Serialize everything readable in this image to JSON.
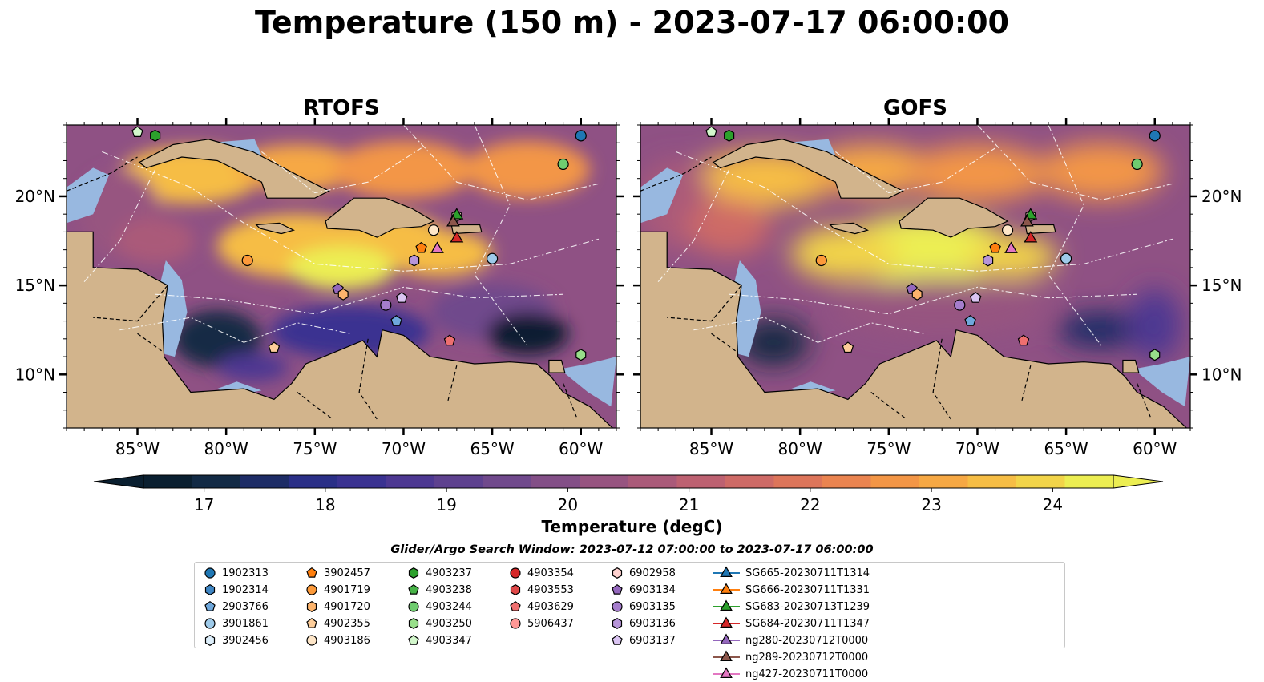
{
  "title": "Temperature (150 m) - 2023-07-17 06:00:00",
  "panels": [
    {
      "title": "RTOFS"
    },
    {
      "title": "GOFS"
    }
  ],
  "colorbar": {
    "label": "Temperature (degC)",
    "ticks": [
      "17",
      "18",
      "19",
      "20",
      "21",
      "22",
      "23",
      "24"
    ],
    "range": [
      16.5,
      24.5
    ],
    "colors": [
      "#0a1f30",
      "#122a45",
      "#1d2c66",
      "#2a2f87",
      "#3a3291",
      "#4d3892",
      "#5e418f",
      "#70498c",
      "#834f87",
      "#975480",
      "#aa5a79",
      "#bd6171",
      "#ce6a66",
      "#dd755a",
      "#ea8450",
      "#f39646",
      "#f6a844",
      "#f6bd45",
      "#f2d449",
      "#ecee52"
    ],
    "extend": "both"
  },
  "search_window": "Glider/Argo Search Window: 2023-07-12 07:00:00 to 2023-07-17 06:00:00",
  "map": {
    "lon_range": [
      -89,
      -58
    ],
    "lat_range": [
      7,
      24
    ],
    "lon_ticks": [
      "85°W",
      "80°W",
      "75°W",
      "70°W",
      "65°W",
      "60°W"
    ],
    "lat_ticks": [
      "10°N",
      "15°N",
      "20°N"
    ],
    "land_color": "#d2b48c",
    "shelf_color": "#98b8e0"
  },
  "legend": [
    {
      "label": "1902313",
      "marker": "circle",
      "color": "#1f77b4"
    },
    {
      "label": "1902314",
      "marker": "hexagon",
      "color": "#3f86c4"
    },
    {
      "label": "2903766",
      "marker": "pentagon",
      "color": "#6fa8dc"
    },
    {
      "label": "3901861",
      "marker": "circle",
      "color": "#9ecae9"
    },
    {
      "label": "3902456",
      "marker": "hexagon",
      "color": "#ddeefa"
    },
    {
      "label": "3902457",
      "marker": "pentagon",
      "color": "#ff7f0e"
    },
    {
      "label": "4901719",
      "marker": "circle",
      "color": "#fd9a3a"
    },
    {
      "label": "4901720",
      "marker": "hexagon",
      "color": "#fdb46c"
    },
    {
      "label": "4902355",
      "marker": "pentagon",
      "color": "#fdcd9a"
    },
    {
      "label": "4903186",
      "marker": "circle",
      "color": "#fee6c8"
    },
    {
      "label": "4903237",
      "marker": "hexagon",
      "color": "#2ca02c"
    },
    {
      "label": "4903238",
      "marker": "pentagon",
      "color": "#47b347"
    },
    {
      "label": "4903244",
      "marker": "circle",
      "color": "#6fcc6f"
    },
    {
      "label": "4903250",
      "marker": "hexagon",
      "color": "#98df8a"
    },
    {
      "label": "4903347",
      "marker": "pentagon",
      "color": "#d3f7cc"
    },
    {
      "label": "4903354",
      "marker": "circle",
      "color": "#d62728"
    },
    {
      "label": "4903553",
      "marker": "hexagon",
      "color": "#e04848"
    },
    {
      "label": "4903629",
      "marker": "pentagon",
      "color": "#ee6f6f"
    },
    {
      "label": "5906437",
      "marker": "circle",
      "color": "#ff9896"
    },
    {
      "label": "6902958",
      "marker": "hexagon",
      "color": "#ffd2d0"
    },
    {
      "label": "6903134",
      "marker": "pentagon",
      "color": "#9467bd"
    },
    {
      "label": "6903135",
      "marker": "circle",
      "color": "#a57dcc"
    },
    {
      "label": "6903136",
      "marker": "hexagon",
      "color": "#b795d9"
    },
    {
      "label": "6903137",
      "marker": "pentagon",
      "color": "#dac4f2"
    },
    {
      "label": "SG665-20230711T1314",
      "marker": "triangle",
      "color": "#1f77b4"
    },
    {
      "label": "SG666-20230711T1331",
      "marker": "triangle",
      "color": "#ff7f0e"
    },
    {
      "label": "SG683-20230713T1239",
      "marker": "triangle",
      "color": "#2ca02c"
    },
    {
      "label": "SG684-20230711T1347",
      "marker": "triangle",
      "color": "#d62728"
    },
    {
      "label": "ng280-20230712T0000",
      "marker": "triangle",
      "color": "#9467bd"
    },
    {
      "label": "ng289-20230712T0000",
      "marker": "triangle",
      "color": "#8c564b"
    },
    {
      "label": "ng427-20230711T0000",
      "marker": "triangle",
      "color": "#e377c2"
    }
  ],
  "chart_data": {
    "type": "heatmap",
    "title": "Temperature (150 m) - 2023-07-17 06:00:00",
    "variable": "Temperature (degC)",
    "depth": "150 m",
    "panels": [
      "RTOFS",
      "GOFS"
    ],
    "x_range": [
      -89,
      -58
    ],
    "y_range": [
      7,
      24
    ],
    "color_range": [
      16.5,
      24.5
    ],
    "observations": [
      {
        "id": "1902313",
        "lon": -60.0,
        "lat": 23.4
      },
      {
        "id": "4903244",
        "lon": -61.0,
        "lat": 21.8
      },
      {
        "id": "4903237",
        "lon": -84.0,
        "lat": 23.4
      },
      {
        "id": "4903347",
        "lon": -85.0,
        "lat": 23.6
      },
      {
        "id": "4903186",
        "lon": -68.3,
        "lat": 18.1
      },
      {
        "id": "6902958",
        "lon": -67.0,
        "lat": 18.9
      },
      {
        "id": "3902457",
        "lon": -69.0,
        "lat": 17.1
      },
      {
        "id": "6903136",
        "lon": -69.4,
        "lat": 16.4
      },
      {
        "id": "3901861",
        "lon": -65.0,
        "lat": 16.5
      },
      {
        "id": "4901719",
        "lon": -78.8,
        "lat": 16.4
      },
      {
        "id": "6903134",
        "lon": -73.7,
        "lat": 14.8
      },
      {
        "id": "4901720",
        "lon": -73.4,
        "lat": 14.5
      },
      {
        "id": "6903135",
        "lon": -71.0,
        "lat": 13.9
      },
      {
        "id": "6903137",
        "lon": -70.1,
        "lat": 14.3
      },
      {
        "id": "2903766",
        "lon": -70.4,
        "lat": 13.0
      },
      {
        "id": "4902355",
        "lon": -77.3,
        "lat": 11.5
      },
      {
        "id": "4903629",
        "lon": -67.4,
        "lat": 11.9
      },
      {
        "id": "4903250",
        "lon": -60.0,
        "lat": 11.1
      },
      {
        "id": "SG683-20230713T1239",
        "lon": -67.0,
        "lat": 19.0
      },
      {
        "id": "SG684-20230711T1347",
        "lon": -67.0,
        "lat": 17.7
      },
      {
        "id": "ng289-20230712T0000",
        "lon": -67.2,
        "lat": 18.6
      },
      {
        "id": "ng427-20230711T0000",
        "lon": -68.1,
        "lat": 17.1
      }
    ]
  }
}
